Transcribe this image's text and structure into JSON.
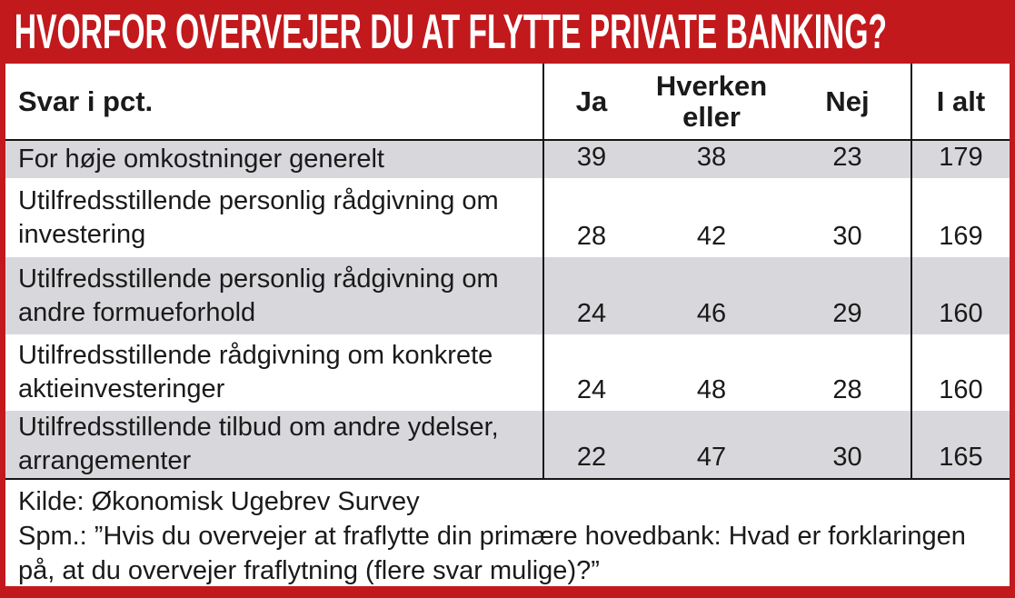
{
  "title": "HVORFOR OVERVEJER DU AT FLYTTE PRIVATE BANKING?",
  "table": {
    "label_header": "Svar i pct.",
    "columns": [
      "Ja",
      "Hverken eller",
      "Nej",
      "I alt"
    ],
    "rows": [
      {
        "label": "For høje omkostninger generelt",
        "values": [
          39,
          38,
          23,
          179
        ]
      },
      {
        "label": "Utilfredsstillende personlig rådgivning om investering",
        "values": [
          28,
          42,
          30,
          169
        ]
      },
      {
        "label": "Utilfredsstillende personlig rådgivning om andre formueforhold",
        "values": [
          24,
          46,
          29,
          160
        ]
      },
      {
        "label": "Utilfredsstillende rådgivning om konkrete aktieinvesteringer",
        "values": [
          24,
          48,
          28,
          160
        ]
      },
      {
        "label": "Utilfredsstillende tilbud om andre ydelser, arrangementer",
        "values": [
          22,
          47,
          30,
          165
        ]
      }
    ]
  },
  "footer": {
    "source": "Kilde: Økonomisk Ugebrev Survey",
    "question": "Spm.: ”Hvis du overvejer at fraflytte din primære hovedbank: Hvad er forklaringen på, at du overvejer fraflytning (flere svar mulige)?”"
  },
  "colors": {
    "accent_red": "#c2191d",
    "row_alt_gray": "#d8d8dc",
    "line_black": "#161616",
    "text": "#1a1a1a"
  },
  "chart_data": {
    "type": "table",
    "title": "HVORFOR OVERVEJER DU AT FLYTTE PRIVATE BANKING?",
    "unit_note": "Svar i pct.",
    "columns": [
      "Ja",
      "Hverken eller",
      "Nej",
      "I alt"
    ],
    "categories": [
      "For høje omkostninger generelt",
      "Utilfredsstillende personlig rådgivning om investering",
      "Utilfredsstillende personlig rådgivning om andre formueforhold",
      "Utilfredsstillende rådgivning om konkrete aktieinvesteringer",
      "Utilfredsstillende tilbud om andre ydelser, arrangementer"
    ],
    "series": [
      {
        "name": "Ja",
        "values": [
          39,
          28,
          24,
          24,
          22
        ]
      },
      {
        "name": "Hverken eller",
        "values": [
          38,
          42,
          46,
          48,
          47
        ]
      },
      {
        "name": "Nej",
        "values": [
          23,
          30,
          29,
          28,
          30
        ]
      },
      {
        "name": "I alt",
        "values": [
          179,
          169,
          160,
          160,
          165
        ]
      }
    ],
    "source": "Kilde: Økonomisk Ugebrev Survey",
    "note": "Spm.: ”Hvis du overvejer at fraflytte din primære hovedbank: Hvad er forklaringen på, at du overvejer fraflytning (flere svar mulige)?”"
  }
}
